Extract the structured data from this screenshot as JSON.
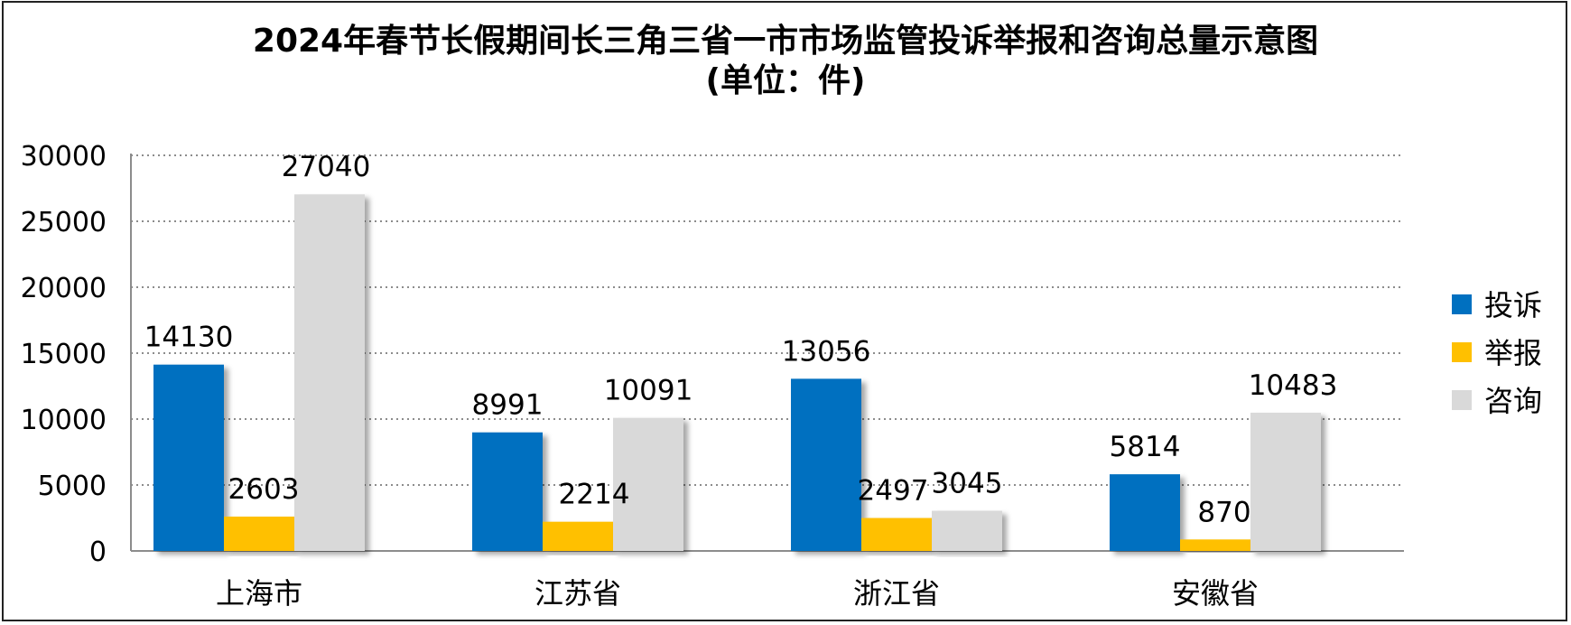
{
  "chart_data": {
    "type": "bar",
    "title_line1": "2024年春节长假期间长三角三省一市市场监管投诉举报和咨询总量示意图",
    "title_line2": "(单位：件)",
    "categories": [
      "上海市",
      "江苏省",
      "浙江省",
      "安徽省"
    ],
    "series": [
      {
        "name": "投诉",
        "color": "#0070C0",
        "values": [
          14130,
          8991,
          13056,
          5814
        ]
      },
      {
        "name": "举报",
        "color": "#FFC000",
        "values": [
          2603,
          2214,
          2497,
          870
        ]
      },
      {
        "name": "咨询",
        "color": "#D9D9D9",
        "values": [
          27040,
          10091,
          3045,
          10483
        ]
      }
    ],
    "yticks": [
      0,
      5000,
      10000,
      15000,
      20000,
      25000,
      30000
    ],
    "ylim": [
      0,
      30000
    ],
    "grid": true,
    "legend_position": "right"
  }
}
